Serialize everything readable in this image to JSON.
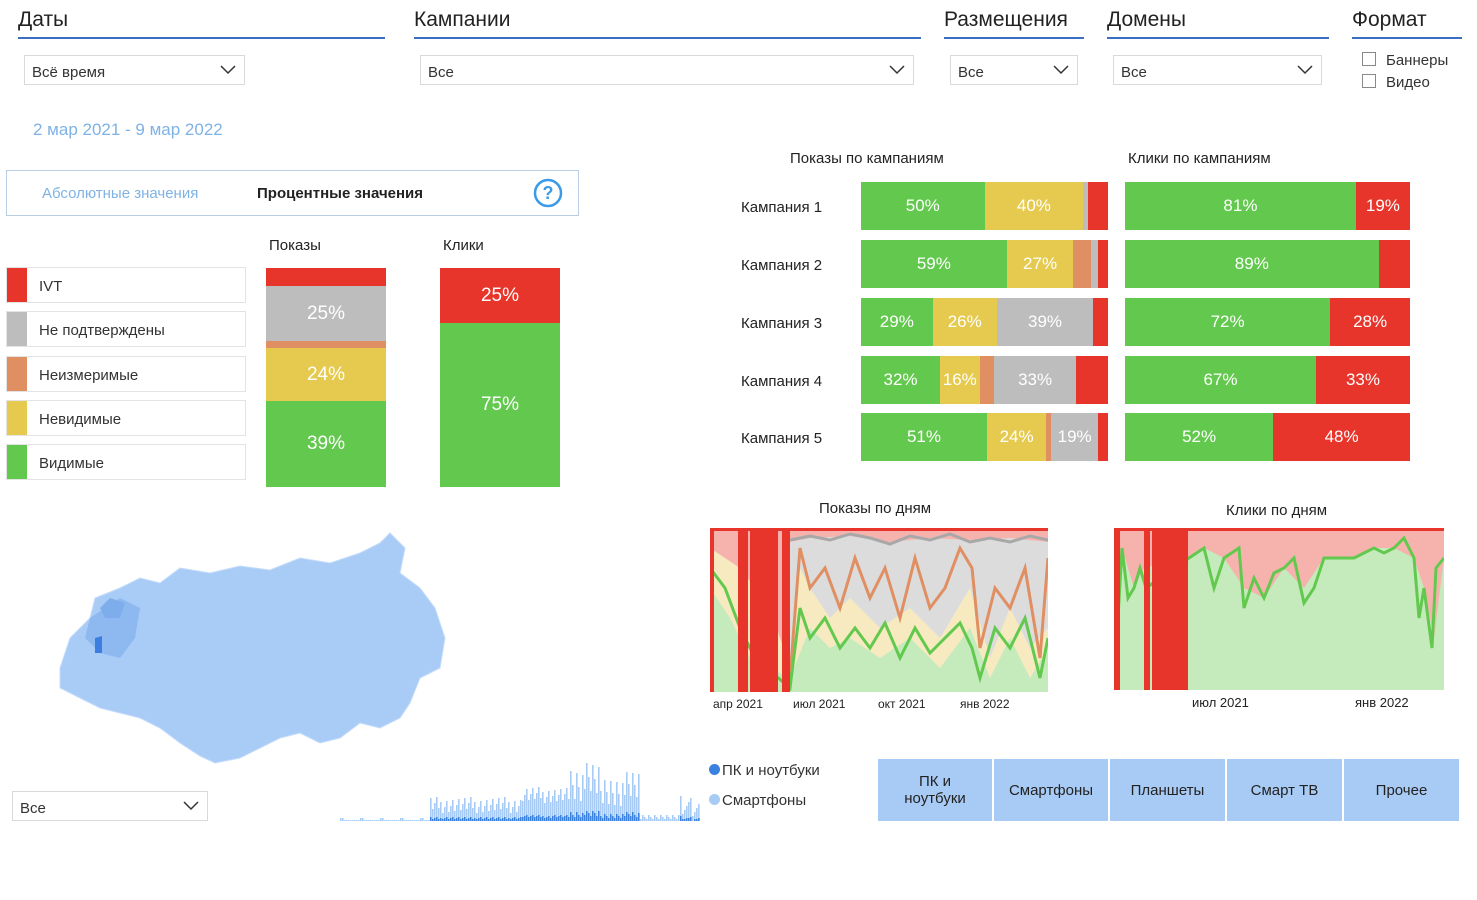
{
  "filters": {
    "dates": {
      "title": "Даты",
      "value": "Всё время"
    },
    "campaigns": {
      "title": "Кампании",
      "value": "Все"
    },
    "placements": {
      "title": "Размещения",
      "value": "Все"
    },
    "domains": {
      "title": "Домены",
      "value": "Все"
    },
    "format": {
      "title": "Формат",
      "options": [
        "Баннеры",
        "Видео"
      ]
    }
  },
  "date_range": "2 мар 2021 - 9 мар 2022",
  "toggle": {
    "absolute": "Абсолютные значения",
    "percent": "Процентные значения",
    "active": "percent"
  },
  "colors": {
    "ivt": "#e8352b",
    "unconfirmed": "#bdbdbd",
    "unmeasurable": "#e08f62",
    "invisible": "#e6ca4f",
    "visible": "#63c94e",
    "accent": "#3a6fc4",
    "device": "#a8cbf5"
  },
  "legend": [
    {
      "key": "ivt",
      "label": "IVT"
    },
    {
      "key": "unconfirmed",
      "label": "Не подтверждены"
    },
    {
      "key": "unmeasurable",
      "label": "Неизмеримые"
    },
    {
      "key": "invisible",
      "label": "Невидимые"
    },
    {
      "key": "visible",
      "label": "Видимые"
    }
  ],
  "totals": {
    "impressions_title": "Показы",
    "clicks_title": "Клики",
    "impressions": [
      {
        "key": "ivt",
        "value": 8
      },
      {
        "key": "unconfirmed",
        "value": 25,
        "label": "25%"
      },
      {
        "key": "unmeasurable",
        "value": 3
      },
      {
        "key": "invisible",
        "value": 24,
        "label": "24%"
      },
      {
        "key": "visible",
        "value": 39,
        "label": "39%"
      }
    ],
    "clicks": [
      {
        "key": "ivt",
        "value": 25,
        "label": "25%"
      },
      {
        "key": "visible",
        "value": 75,
        "label": "75%"
      }
    ]
  },
  "campaigns": {
    "impressions_title": "Показы по кампаниям",
    "clicks_title": "Клики по кампаниям",
    "rows": [
      {
        "name": "Кампания 1",
        "impressions": [
          {
            "key": "visible",
            "value": 50,
            "label": "50%"
          },
          {
            "key": "invisible",
            "value": 40,
            "label": "40%"
          },
          {
            "key": "unconfirmed",
            "value": 2
          },
          {
            "key": "ivt",
            "value": 8
          }
        ],
        "clicks": [
          {
            "key": "visible",
            "value": 81,
            "label": "81%"
          },
          {
            "key": "ivt",
            "value": 19,
            "label": "19%"
          }
        ]
      },
      {
        "name": "Кампания 2",
        "impressions": [
          {
            "key": "visible",
            "value": 59,
            "label": "59%"
          },
          {
            "key": "invisible",
            "value": 27,
            "label": "27%"
          },
          {
            "key": "unmeasurable",
            "value": 7
          },
          {
            "key": "unconfirmed",
            "value": 3
          },
          {
            "key": "ivt",
            "value": 4
          }
        ],
        "clicks": [
          {
            "key": "visible",
            "value": 89,
            "label": "89%"
          },
          {
            "key": "ivt",
            "value": 11
          }
        ]
      },
      {
        "name": "Кампания 3",
        "impressions": [
          {
            "key": "visible",
            "value": 29,
            "label": "29%"
          },
          {
            "key": "invisible",
            "value": 26,
            "label": "26%"
          },
          {
            "key": "unconfirmed",
            "value": 39,
            "label": "39%"
          },
          {
            "key": "ivt",
            "value": 6
          }
        ],
        "clicks": [
          {
            "key": "visible",
            "value": 72,
            "label": "72%"
          },
          {
            "key": "ivt",
            "value": 28,
            "label": "28%"
          }
        ]
      },
      {
        "name": "Кампания 4",
        "impressions": [
          {
            "key": "visible",
            "value": 32,
            "label": "32%"
          },
          {
            "key": "invisible",
            "value": 16,
            "label": "16%"
          },
          {
            "key": "unmeasurable",
            "value": 6
          },
          {
            "key": "unconfirmed",
            "value": 33,
            "label": "33%"
          },
          {
            "key": "ivt",
            "value": 13
          }
        ],
        "clicks": [
          {
            "key": "visible",
            "value": 67,
            "label": "67%"
          },
          {
            "key": "ivt",
            "value": 33,
            "label": "33%"
          }
        ]
      },
      {
        "name": "Кампания 5",
        "impressions": [
          {
            "key": "visible",
            "value": 51,
            "label": "51%"
          },
          {
            "key": "invisible",
            "value": 24,
            "label": "24%"
          },
          {
            "key": "unmeasurable",
            "value": 2
          },
          {
            "key": "unconfirmed",
            "value": 19,
            "label": "19%"
          },
          {
            "key": "ivt",
            "value": 4
          }
        ],
        "clicks": [
          {
            "key": "visible",
            "value": 52,
            "label": "52%"
          },
          {
            "key": "ivt",
            "value": 48,
            "label": "48%"
          }
        ]
      }
    ]
  },
  "daily": {
    "impressions_title": "Показы по дням",
    "clicks_title": "Клики по дням",
    "impressions_ticks": [
      "апр 2021",
      "июл 2021",
      "окт 2021",
      "янв 2022"
    ],
    "clicks_ticks": [
      "июл 2021",
      "янв 2022"
    ]
  },
  "region_select": {
    "value": "Все"
  },
  "device_legend": [
    {
      "label": "ПК и ноутбуки",
      "color": "#3b82e0"
    },
    {
      "label": "Смартфоны",
      "color": "#a8cbf5"
    }
  ],
  "device_buttons": [
    "ПК и ноутбуки",
    "Смартфоны",
    "Планшеты",
    "Смарт ТВ",
    "Прочее"
  ]
}
